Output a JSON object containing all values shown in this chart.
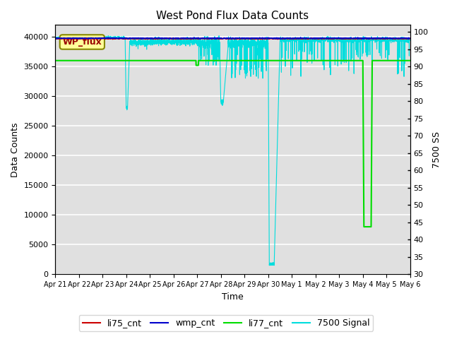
{
  "title": "West Pond Flux Data Counts",
  "xlabel": "Time",
  "ylabel": "Data Counts",
  "ylabel_right": "7500 SS",
  "annotation_text": "WP_flux",
  "ylim_left": [
    0,
    42000
  ],
  "ylim_right": [
    30,
    102
  ],
  "yticks_left": [
    0,
    5000,
    10000,
    15000,
    20000,
    25000,
    30000,
    35000,
    40000
  ],
  "yticks_right": [
    30,
    35,
    40,
    45,
    50,
    55,
    60,
    65,
    70,
    75,
    80,
    85,
    90,
    95,
    100
  ],
  "plot_bg_color": "#e0e0e0",
  "fig_bg_color": "#ffffff",
  "grid_color": "#ffffff",
  "li77_level": 36000,
  "li77_color": "#00dd00",
  "cyan_color": "#00dddd",
  "red_color": "#cc0000",
  "blue_color": "#0000cc",
  "legend_labels": [
    "li75_cnt",
    "wmp_cnt",
    "li77_cnt",
    "7500 Signal"
  ],
  "legend_colors": [
    "#cc0000",
    "#0000cc",
    "#00dd00",
    "#00dddd"
  ],
  "date_labels": [
    "Apr 21",
    "Apr 22",
    "Apr 23",
    "Apr 24",
    "Apr 25",
    "Apr 26",
    "Apr 27",
    "Apr 28",
    "Apr 29",
    "Apr 30",
    "May 1",
    "May 2",
    "May 3",
    "May 4",
    "May 5",
    "May 6"
  ],
  "num_days": 15
}
